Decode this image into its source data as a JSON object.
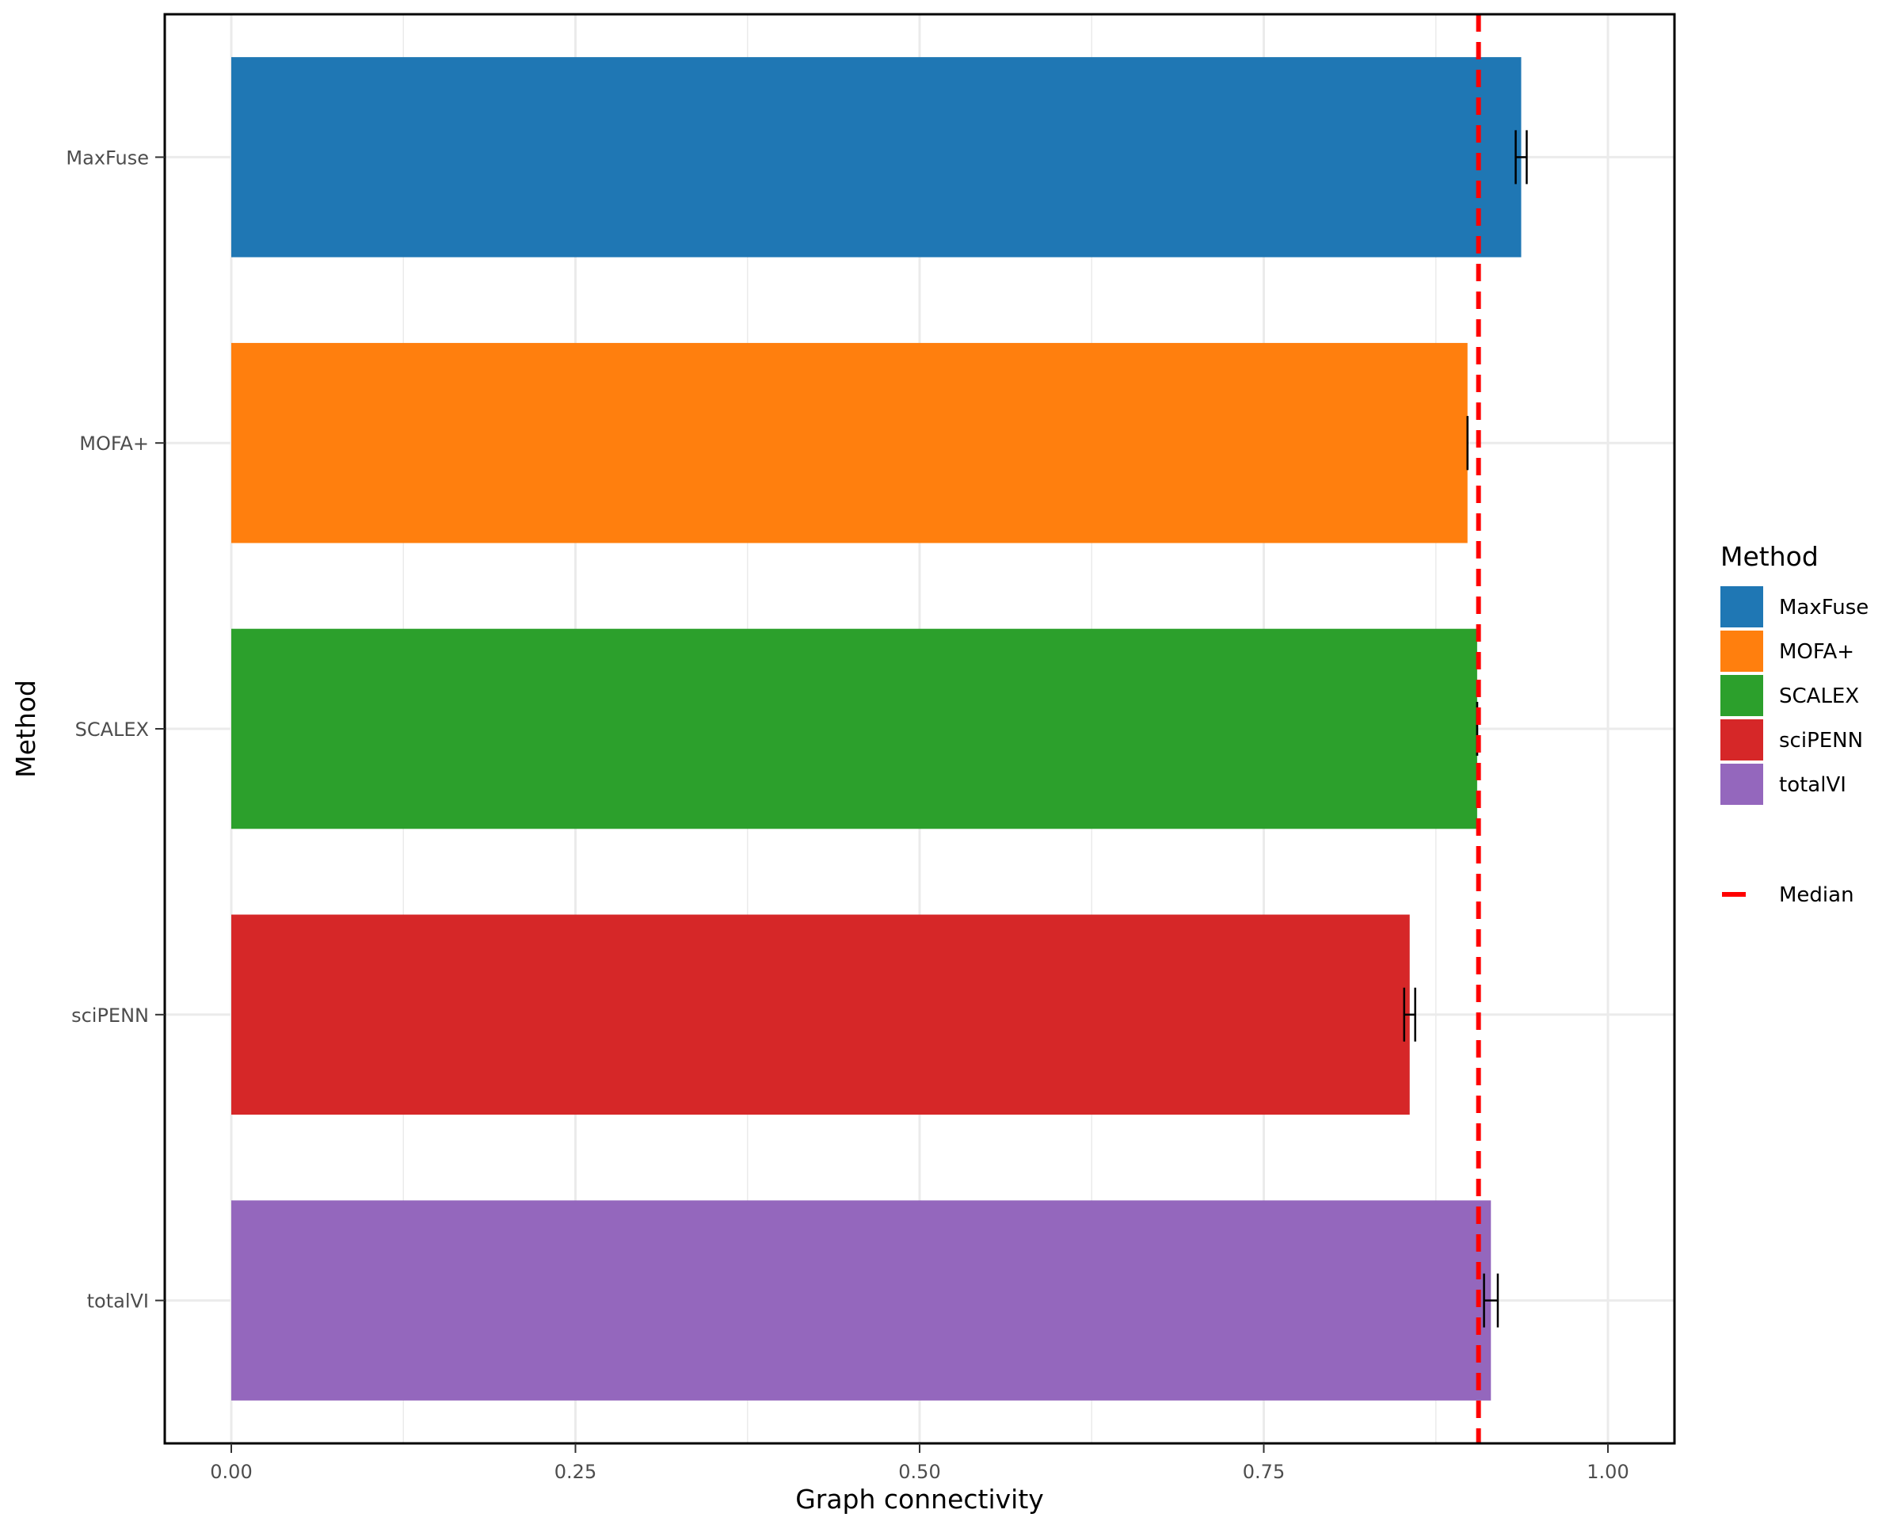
{
  "chart_data": {
    "type": "bar",
    "orientation": "horizontal",
    "categories": [
      "MaxFuse",
      "MOFA+",
      "SCALEX",
      "sciPENN",
      "totalVI"
    ],
    "values": [
      0.937,
      0.898,
      0.905,
      0.856,
      0.915
    ],
    "errors": [
      {
        "low": 0.933,
        "high": 0.941
      },
      {
        "low": 0.898,
        "high": 0.898
      },
      {
        "low": 0.905,
        "high": 0.905
      },
      {
        "low": 0.852,
        "high": 0.86
      },
      {
        "low": 0.91,
        "high": 0.92
      }
    ],
    "colors": [
      "#1f77b4",
      "#ff7f0e",
      "#2ca02c",
      "#d62728",
      "#9467bd"
    ],
    "median": 0.906,
    "median_color": "#ff0000",
    "xlabel": "Graph connectivity",
    "ylabel": "Method",
    "xlim": [
      -0.048,
      1.048
    ],
    "xticks": [
      "0.00",
      "0.25",
      "0.50",
      "0.75",
      "1.00"
    ],
    "grid": true,
    "legend": {
      "title": "Method",
      "position": "right",
      "entries": [
        "MaxFuse",
        "MOFA+",
        "SCALEX",
        "sciPENN",
        "totalVI"
      ],
      "median_label": "Median"
    }
  }
}
